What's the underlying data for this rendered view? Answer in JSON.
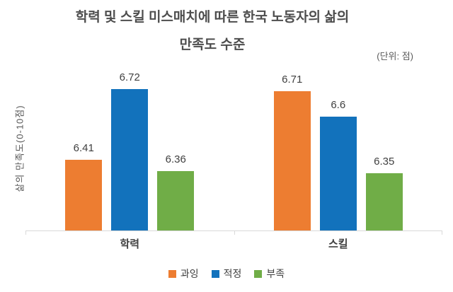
{
  "header": {
    "title_line1": "학력 및 스킬 미스매치에 따른 한국 노동자의 삶의",
    "title_line2": "만족도 수준",
    "unit_note": "(단위: 점)"
  },
  "chart_data": {
    "type": "bar",
    "title": "학력 및 스킬 미스매치에 따른 한국 노동자의 삶의 만족도 수준",
    "unit_note": "(단위: 점)",
    "ylabel": "삶의 만족도(0-10점)",
    "xlabel": "",
    "categories": [
      "학력",
      "스킬"
    ],
    "series": [
      {
        "name": "과잉",
        "color": "#ED7D31",
        "values": [
          6.41,
          6.71
        ]
      },
      {
        "name": "적정",
        "color": "#1272BC",
        "values": [
          6.72,
          6.6
        ]
      },
      {
        "name": "부족",
        "color": "#70AD47",
        "values": [
          6.36,
          6.35
        ]
      }
    ],
    "ylim": [
      6.1,
      6.8
    ],
    "grid": false,
    "value_labels": true,
    "legend_position": "bottom"
  },
  "colors": {
    "axis_line": "#D9D9D9",
    "title_text": "#4D4D4D",
    "label_text": "#404040",
    "muted_text": "#595959",
    "background": "#FFFFFF"
  }
}
